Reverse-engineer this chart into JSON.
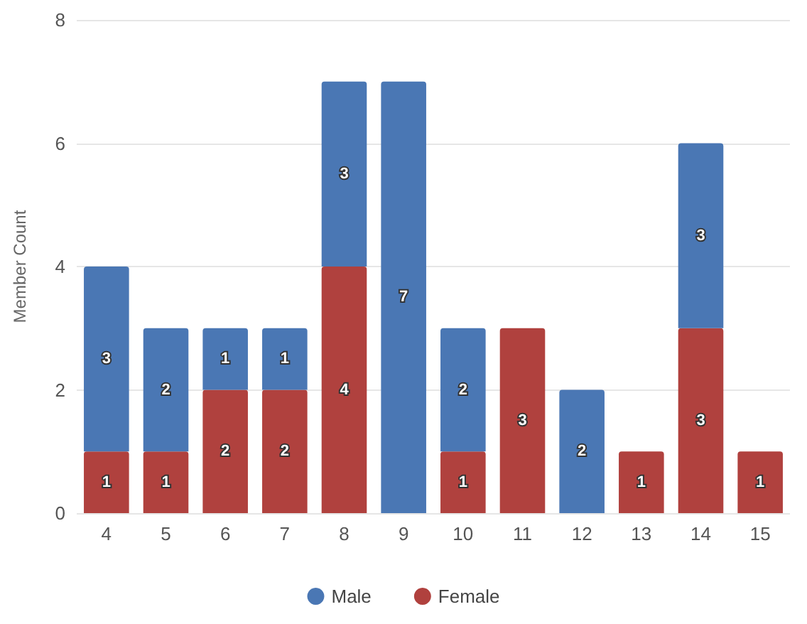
{
  "chart_data": {
    "type": "bar",
    "stacked": true,
    "ylabel": "Member Count",
    "categories": [
      "4",
      "5",
      "6",
      "7",
      "8",
      "9",
      "10",
      "11",
      "12",
      "13",
      "14",
      "15"
    ],
    "series": [
      {
        "name": "Female",
        "color": "#b0413e",
        "values": [
          1,
          1,
          2,
          2,
          4,
          null,
          1,
          3,
          null,
          1,
          3,
          1
        ]
      },
      {
        "name": "Male",
        "color": "#4a77b4",
        "values": [
          3,
          2,
          1,
          1,
          3,
          7,
          2,
          null,
          2,
          null,
          3,
          null
        ]
      }
    ],
    "ylim": [
      0,
      8
    ],
    "yticks": [
      0,
      2,
      4,
      6,
      8
    ],
    "grid": "y",
    "legend": "bottom",
    "data_labels": true
  }
}
